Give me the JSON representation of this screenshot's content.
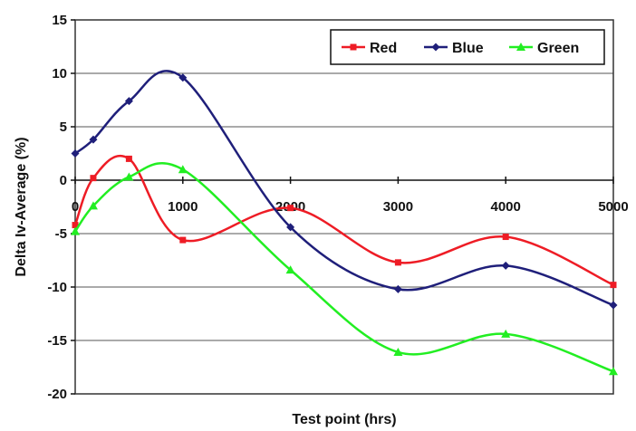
{
  "chart_data": {
    "type": "line",
    "xlabel": "Test point (hrs)",
    "ylabel": "Delta Iv-Average (%)",
    "xlim": [
      0,
      5000
    ],
    "ylim": [
      -20,
      15
    ],
    "x_ticks": [
      "0",
      "1000",
      "2000",
      "3000",
      "4000",
      "5000"
    ],
    "y_ticks": [
      "15",
      "10",
      "5",
      "0",
      "-5",
      "-10",
      "-15",
      "-20"
    ],
    "grid": "horizontal",
    "legend_position": "top-right",
    "x": [
      0,
      168,
      500,
      1000,
      2000,
      3000,
      4000,
      5000
    ],
    "series": [
      {
        "name": "Red",
        "color": "#ee1c25",
        "marker": "square",
        "values": [
          -4.2,
          0.2,
          2.0,
          -5.6,
          -2.6,
          -7.7,
          -5.3,
          -9.8
        ]
      },
      {
        "name": "Blue",
        "color": "#1f1f7a",
        "marker": "diamond",
        "values": [
          2.5,
          3.8,
          7.4,
          9.6,
          -4.4,
          -10.2,
          -8.0,
          -11.7
        ]
      },
      {
        "name": "Green",
        "color": "#22ee22",
        "marker": "triangle",
        "values": [
          -4.8,
          -2.4,
          0.3,
          1.0,
          -8.4,
          -16.1,
          -14.4,
          -17.9
        ]
      }
    ]
  }
}
